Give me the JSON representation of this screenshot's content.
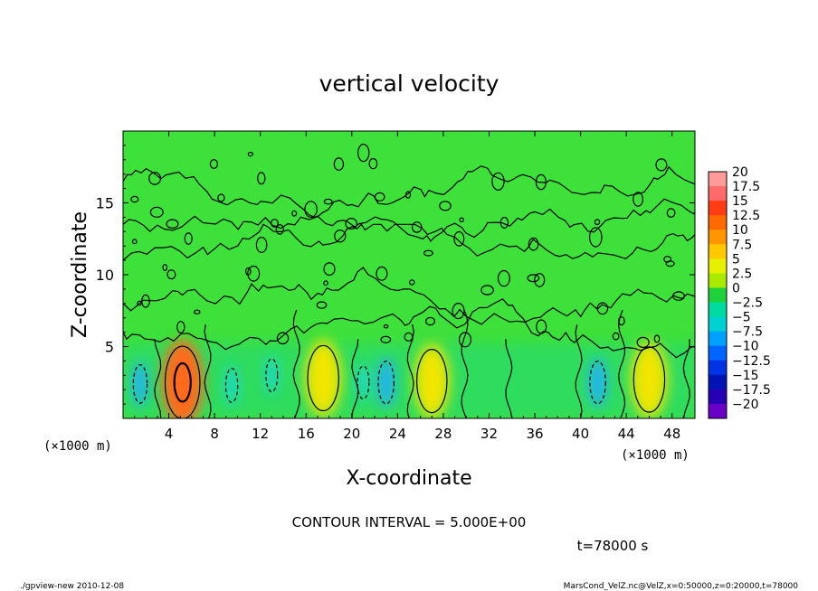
{
  "chart_data": {
    "type": "heatmap",
    "title": "vertical velocity",
    "xlabel": "X-coordinate",
    "ylabel": "Z-coordinate",
    "x_unit": "(×1000 m)",
    "y_unit": "(×1000 m)",
    "xlim": [
      0,
      50
    ],
    "ylim": [
      0,
      20
    ],
    "x_ticks": [
      "4",
      "8",
      "12",
      "16",
      "20",
      "24",
      "28",
      "32",
      "36",
      "40",
      "44",
      "48"
    ],
    "y_ticks": [
      "5",
      "10",
      "15"
    ],
    "colorbar": {
      "labels": [
        "20",
        "17.5",
        "15",
        "12.5",
        "10",
        "7.5",
        "5",
        "2.5",
        "0",
        "−2.5",
        "−5",
        "−7.5",
        "−10",
        "−12.5",
        "−15",
        "−17.5",
        "−20"
      ],
      "colors": [
        "#ff9a9a",
        "#ff6a6a",
        "#ff3c14",
        "#ff6a00",
        "#ff9600",
        "#ffc800",
        "#e6f000",
        "#a8ea00",
        "#1ed23c",
        "#00dca0",
        "#00d2d2",
        "#00a0ff",
        "#0064ff",
        "#0032e6",
        "#0014b4",
        "#2800b4",
        "#6a00c8"
      ]
    },
    "contour_interval": "CONTOUR INTERVAL = 5.000E+00",
    "time_label": "t=78000 s",
    "cells": [
      {
        "x": 1.5,
        "z": 2.4,
        "value": -5,
        "kind": "down"
      },
      {
        "x": 5.2,
        "z": 2.5,
        "value": 11,
        "kind": "up"
      },
      {
        "x": 9.5,
        "z": 2.3,
        "value": -3,
        "kind": "down"
      },
      {
        "x": 13.0,
        "z": 3.0,
        "value": -2.5,
        "kind": "down"
      },
      {
        "x": 17.5,
        "z": 2.8,
        "value": 7,
        "kind": "up"
      },
      {
        "x": 21.0,
        "z": 2.5,
        "value": -2.5,
        "kind": "down"
      },
      {
        "x": 23.0,
        "z": 2.5,
        "value": -7,
        "kind": "down"
      },
      {
        "x": 27.0,
        "z": 2.6,
        "value": 6,
        "kind": "up"
      },
      {
        "x": 41.5,
        "z": 2.5,
        "value": -7,
        "kind": "down"
      },
      {
        "x": 46.0,
        "z": 2.7,
        "value": 7,
        "kind": "up"
      }
    ]
  },
  "footer": {
    "left": "./gpview-new  2010-12-08",
    "right": "MarsCond_VelZ.nc@VelZ,x=0:50000,z=0:20000,t=78000"
  }
}
